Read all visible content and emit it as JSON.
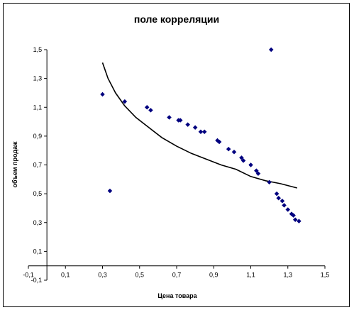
{
  "chart_data": {
    "type": "scatter",
    "title": "поле корреляции",
    "xlabel": "Цена товара",
    "ylabel": "объем продаж",
    "xlim": [
      -0.1,
      1.5
    ],
    "ylim": [
      -0.1,
      1.5
    ],
    "x_ticks": [
      "-0,1",
      "0,1",
      "0,3",
      "0,5",
      "0,7",
      "0,9",
      "1,1",
      "1,3",
      "1,5"
    ],
    "y_ticks": [
      "-0,1",
      "0,1",
      "0,3",
      "0,5",
      "0,7",
      "0,9",
      "1,1",
      "1,3",
      "1,5"
    ],
    "grid": false,
    "legend": "none",
    "marker_color": "#00007f",
    "series": [
      {
        "type": "scatter",
        "points": [
          [
            0.3,
            1.19
          ],
          [
            0.34,
            0.52
          ],
          [
            0.42,
            1.14
          ],
          [
            0.54,
            1.1
          ],
          [
            0.56,
            1.08
          ],
          [
            0.66,
            1.03
          ],
          [
            0.71,
            1.01
          ],
          [
            0.72,
            1.01
          ],
          [
            0.76,
            0.98
          ],
          [
            0.8,
            0.96
          ],
          [
            0.83,
            0.93
          ],
          [
            0.85,
            0.93
          ],
          [
            0.92,
            0.87
          ],
          [
            0.93,
            0.86
          ],
          [
            0.98,
            0.81
          ],
          [
            1.01,
            0.79
          ],
          [
            1.05,
            0.75
          ],
          [
            1.06,
            0.73
          ],
          [
            1.1,
            0.7
          ],
          [
            1.13,
            0.66
          ],
          [
            1.14,
            0.64
          ],
          [
            1.2,
            0.58
          ],
          [
            1.21,
            1.5
          ],
          [
            1.24,
            0.5
          ],
          [
            1.25,
            0.47
          ],
          [
            1.27,
            0.45
          ],
          [
            1.28,
            0.42
          ],
          [
            1.3,
            0.39
          ],
          [
            1.32,
            0.36
          ],
          [
            1.33,
            0.35
          ],
          [
            1.34,
            0.32
          ],
          [
            1.36,
            0.31
          ]
        ]
      },
      {
        "type": "line",
        "points": [
          [
            0.3,
            1.41
          ],
          [
            0.33,
            1.3
          ],
          [
            0.37,
            1.2
          ],
          [
            0.42,
            1.11
          ],
          [
            0.48,
            1.03
          ],
          [
            0.55,
            0.96
          ],
          [
            0.62,
            0.89
          ],
          [
            0.7,
            0.83
          ],
          [
            0.78,
            0.78
          ],
          [
            0.86,
            0.74
          ],
          [
            0.94,
            0.7
          ],
          [
            1.02,
            0.67
          ],
          [
            1.1,
            0.62
          ],
          [
            1.18,
            0.59
          ],
          [
            1.26,
            0.57
          ],
          [
            1.35,
            0.54
          ]
        ]
      }
    ]
  }
}
